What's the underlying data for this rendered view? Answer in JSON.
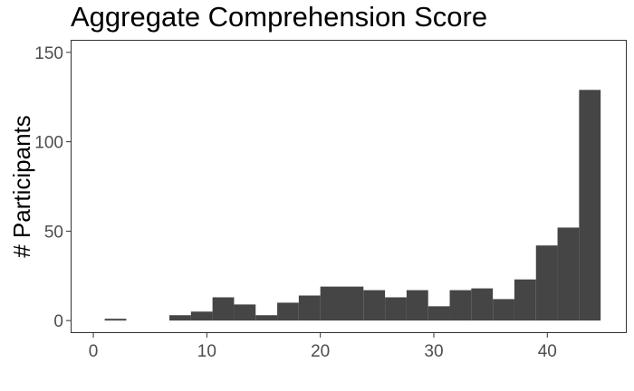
{
  "chart_data": {
    "type": "bar",
    "title": "Aggregate Comprehension Score",
    "xlabel": "",
    "ylabel": "# Participants",
    "xlim": [
      -2,
      47
    ],
    "ylim": [
      -7,
      157
    ],
    "x_ticks": [
      0,
      10,
      20,
      30,
      40
    ],
    "y_ticks": [
      0,
      50,
      100,
      150
    ],
    "grid": false,
    "bar_color": "#454545",
    "bins": [
      {
        "x0": 1.0,
        "x1": 2.9,
        "count": 1
      },
      {
        "x0": 2.9,
        "x1": 4.8,
        "count": 0
      },
      {
        "x0": 4.8,
        "x1": 6.7,
        "count": 0
      },
      {
        "x0": 6.7,
        "x1": 8.6,
        "count": 3
      },
      {
        "x0": 8.6,
        "x1": 10.5,
        "count": 5
      },
      {
        "x0": 10.5,
        "x1": 12.4,
        "count": 13
      },
      {
        "x0": 12.4,
        "x1": 14.3,
        "count": 9
      },
      {
        "x0": 14.3,
        "x1": 16.2,
        "count": 3
      },
      {
        "x0": 16.2,
        "x1": 18.1,
        "count": 10
      },
      {
        "x0": 18.1,
        "x1": 20.0,
        "count": 14
      },
      {
        "x0": 20.0,
        "x1": 21.9,
        "count": 19
      },
      {
        "x0": 21.9,
        "x1": 23.8,
        "count": 19
      },
      {
        "x0": 23.8,
        "x1": 25.7,
        "count": 17
      },
      {
        "x0": 25.7,
        "x1": 27.6,
        "count": 13
      },
      {
        "x0": 27.6,
        "x1": 29.5,
        "count": 17
      },
      {
        "x0": 29.5,
        "x1": 31.4,
        "count": 8
      },
      {
        "x0": 31.4,
        "x1": 33.3,
        "count": 17
      },
      {
        "x0": 33.3,
        "x1": 35.2,
        "count": 18
      },
      {
        "x0": 35.2,
        "x1": 37.1,
        "count": 12
      },
      {
        "x0": 37.1,
        "x1": 39.0,
        "count": 23
      },
      {
        "x0": 39.0,
        "x1": 40.9,
        "count": 42
      },
      {
        "x0": 40.9,
        "x1": 42.8,
        "count": 52
      },
      {
        "x0": 42.8,
        "x1": 44.7,
        "count": 129
      }
    ]
  }
}
